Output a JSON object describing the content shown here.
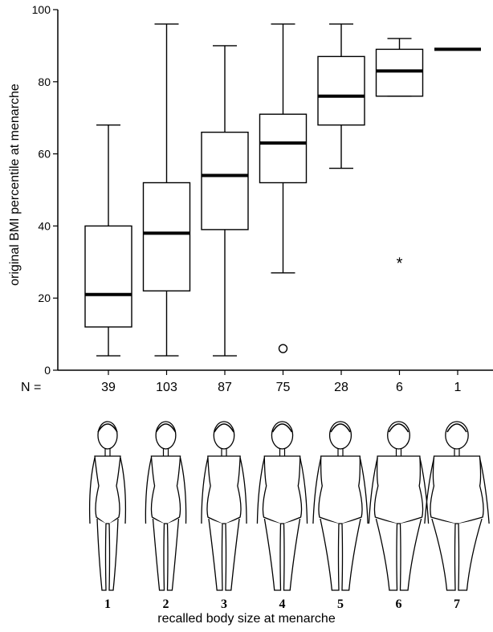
{
  "chart_data": {
    "type": "box",
    "ylabel": "original BMI percentile at menarche",
    "xlabel": "recalled body size at menarche",
    "ylim": [
      0,
      100
    ],
    "yticks": [
      0,
      20,
      40,
      60,
      80,
      100
    ],
    "n_label": "N =",
    "categories": [
      "1",
      "2",
      "3",
      "4",
      "5",
      "6",
      "7"
    ],
    "n_values": [
      "39",
      "103",
      "87",
      "75",
      "28",
      "6",
      "1"
    ],
    "boxes": [
      {
        "category": "1",
        "whisker_low": 4,
        "q1": 12,
        "median": 21,
        "q3": 40,
        "whisker_high": 68
      },
      {
        "category": "2",
        "whisker_low": 4,
        "q1": 22,
        "median": 38,
        "q3": 52,
        "whisker_high": 96
      },
      {
        "category": "3",
        "whisker_low": 4,
        "q1": 39,
        "median": 54,
        "q3": 66,
        "whisker_high": 90
      },
      {
        "category": "4",
        "whisker_low": 27,
        "q1": 52,
        "median": 63,
        "q3": 71,
        "whisker_high": 96
      },
      {
        "category": "5",
        "whisker_low": 56,
        "q1": 68,
        "median": 76,
        "q3": 87,
        "whisker_high": 96
      },
      {
        "category": "6",
        "whisker_low": 76,
        "q1": 76,
        "median": 83,
        "q3": 89,
        "whisker_high": 92
      },
      {
        "category": "7",
        "whisker_low": 89,
        "q1": 89,
        "median": 89,
        "q3": 89,
        "whisker_high": 89
      }
    ],
    "outliers": [
      {
        "category": "4",
        "value": 6,
        "symbol": "circle"
      },
      {
        "category": "6",
        "value": 30,
        "symbol": "star"
      }
    ]
  },
  "colors": {
    "ink": "#000000",
    "background": "#ffffff",
    "figure_fill": "#ffffff"
  }
}
